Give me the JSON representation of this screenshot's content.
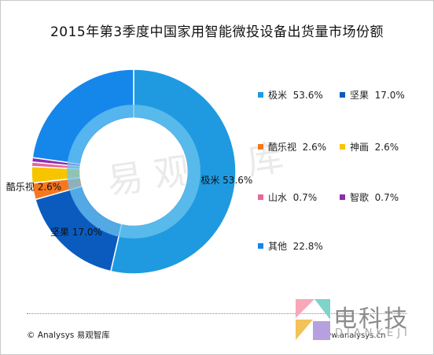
{
  "title": "2015年第3季度中国家用智能微投设备出货量市场份额",
  "chart_data": {
    "type": "pie",
    "variant": "donut",
    "categories": [
      "极米",
      "坚果",
      "酷乐视",
      "神画",
      "山水",
      "智歌",
      "其他"
    ],
    "values": [
      53.6,
      17.0,
      2.6,
      2.6,
      0.7,
      0.7,
      22.8
    ],
    "value_labels": [
      "53.6%",
      "17.0%",
      "2.6%",
      "2.6%",
      "0.7%",
      "0.7%",
      "22.8%"
    ],
    "colors": [
      "#1f9ae0",
      "#0b5bbf",
      "#f6781d",
      "#f7c500",
      "#e8679b",
      "#8e2bb0",
      "#1587eb"
    ],
    "legend_position": "right",
    "slice_labels": [
      {
        "name": "极米",
        "value": "53.6%"
      },
      {
        "name": "坚果",
        "value": "17.0%"
      },
      {
        "name": "酷乐视",
        "value": "2.6%"
      }
    ]
  },
  "legend": {
    "rows": [
      [
        {
          "name": "极米",
          "value": "53.6%",
          "color": "#1f9ae0"
        },
        {
          "name": "坚果",
          "value": "17.0%",
          "color": "#0b5bbf"
        }
      ],
      [
        {
          "name": "酷乐视",
          "value": "2.6%",
          "color": "#f6781d"
        },
        {
          "name": "神画",
          "value": "2.6%",
          "color": "#f7c500"
        }
      ],
      [
        {
          "name": "山水",
          "value": "0.7%",
          "color": "#e8679b"
        },
        {
          "name": "智歌",
          "value": "0.7%",
          "color": "#8e2bb0"
        }
      ],
      [
        {
          "name": "其他",
          "value": "22.8%",
          "color": "#1587eb"
        }
      ]
    ]
  },
  "watermark": "易观智库",
  "footer": {
    "copyright": "© Analysys 易观智库",
    "url": "www.analysys.cn"
  },
  "brand": {
    "name": "电科技",
    "sub": "DIANKEJI"
  }
}
